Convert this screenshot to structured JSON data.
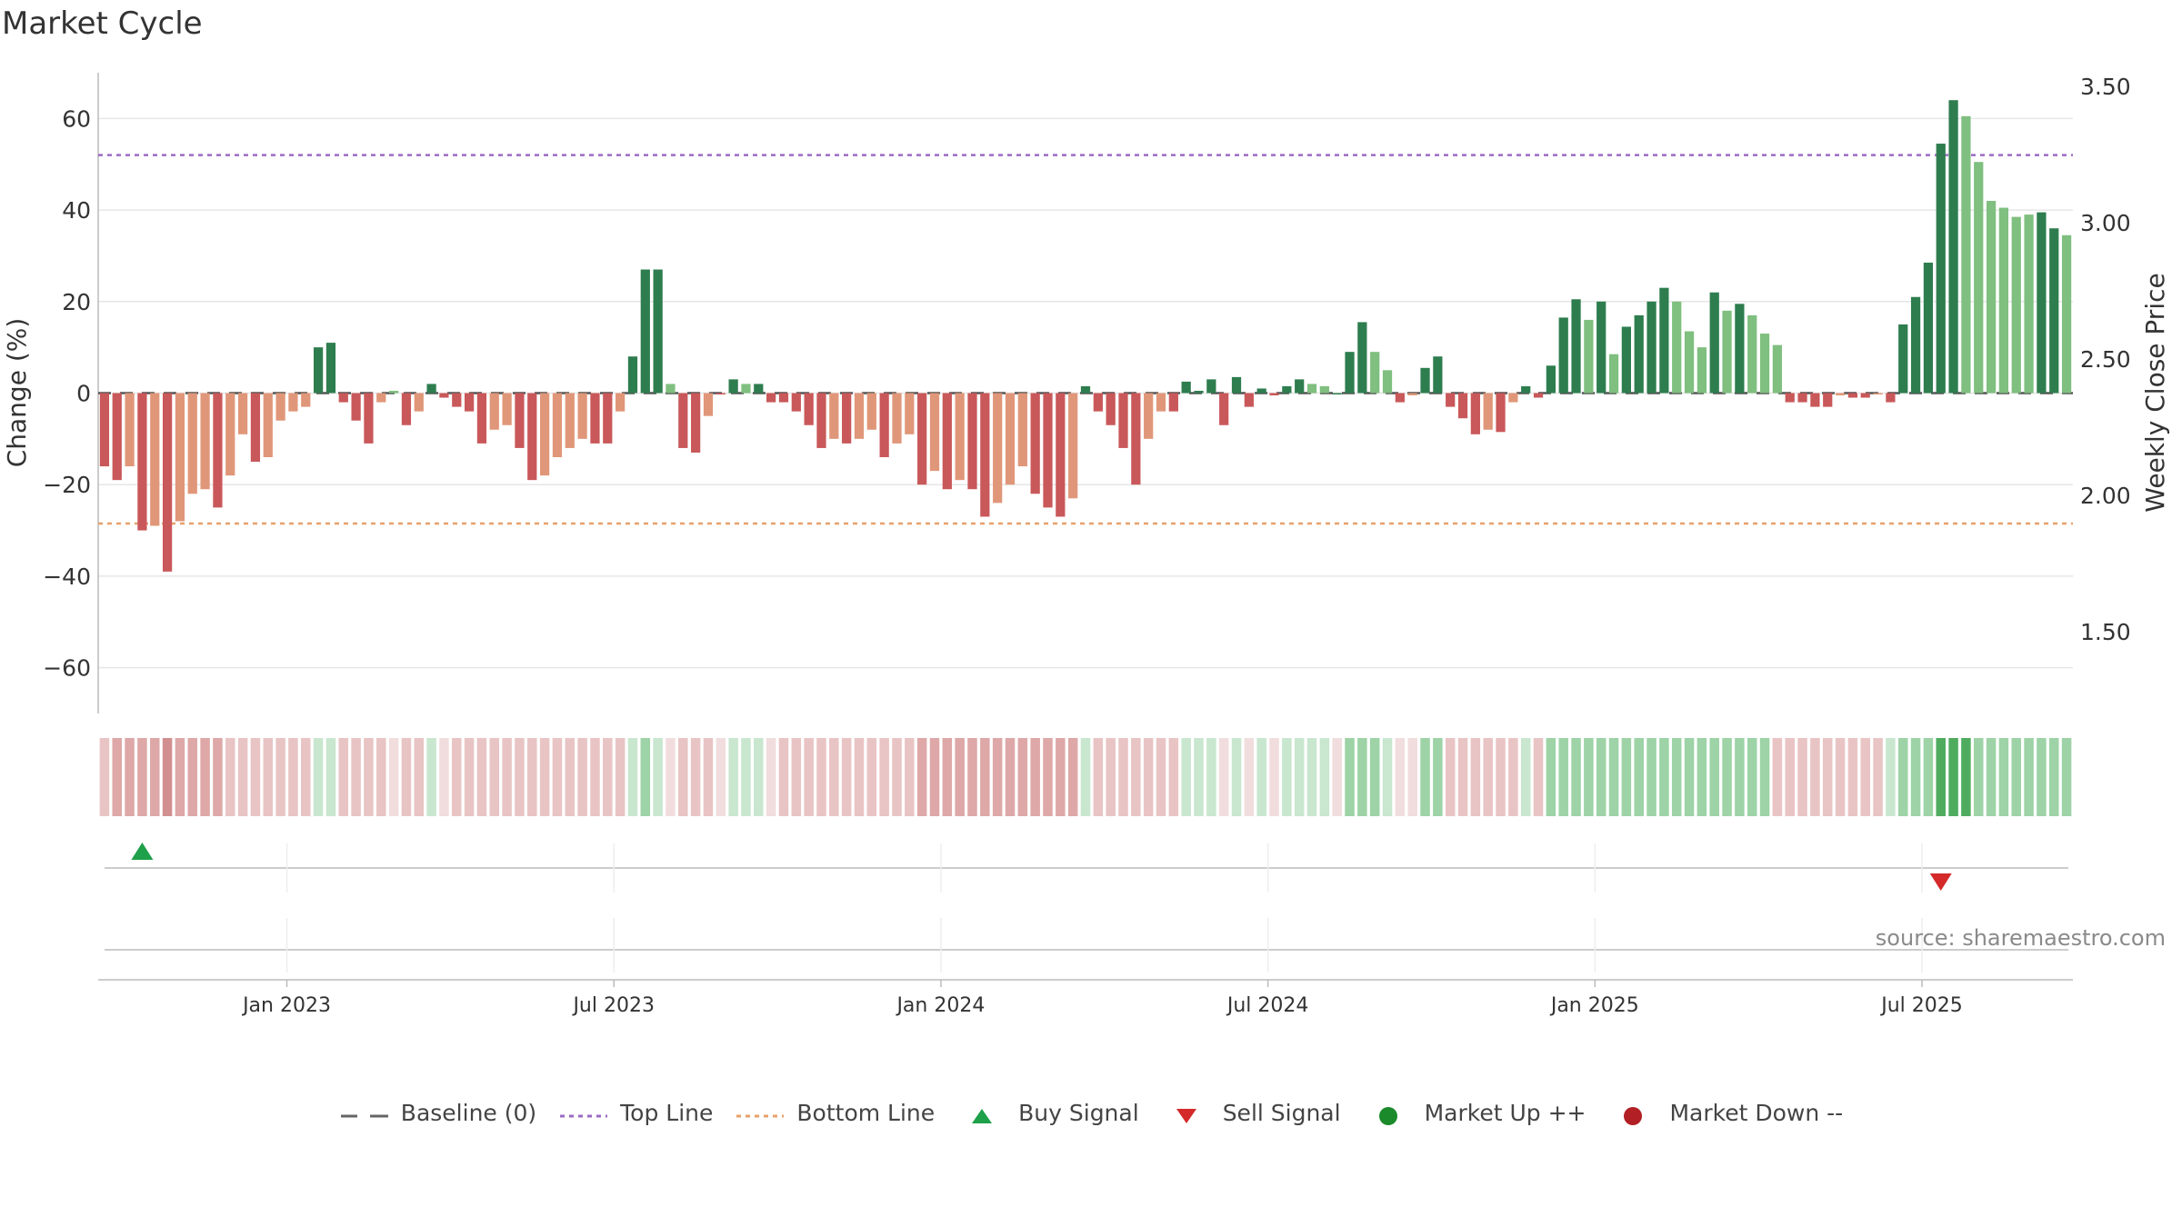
{
  "chart_data": {
    "title": "Market Cycle",
    "type": "bar",
    "ylabel_left": "Change (%)",
    "ylabel_right": "Weekly Close Price",
    "ylim_left": [
      -70,
      70
    ],
    "ylim_right": [
      1.2,
      3.55
    ],
    "yticks_left": [
      60,
      40,
      20,
      0,
      -20,
      -40,
      -60
    ],
    "yticks_left_labels": [
      "60",
      "40",
      "20",
      "0",
      "−20",
      "−40",
      "−60"
    ],
    "yticks_right": [
      3.5,
      3.0,
      2.5,
      2.0,
      1.5
    ],
    "yticks_right_labels": [
      "3.50",
      "3.00",
      "2.50",
      "2.00",
      "1.50"
    ],
    "xticks": [
      {
        "label": "Jan 2023",
        "index": 15
      },
      {
        "label": "Jul 2023",
        "index": 41
      },
      {
        "label": "Jan 2024",
        "index": 67
      },
      {
        "label": "Jul 2024",
        "index": 93
      },
      {
        "label": "Jan 2025",
        "index": 119
      },
      {
        "label": "Jul 2025",
        "index": 145
      }
    ],
    "top_line": 52,
    "bottom_line": -28.5,
    "grid": true,
    "values": [
      -16,
      -19,
      -16,
      -30,
      -29,
      -39,
      -28,
      -22,
      -21,
      -25,
      -18,
      -9,
      -15,
      -14,
      -6,
      -4,
      -3,
      10,
      11,
      -2,
      -6,
      -11,
      -2,
      0.5,
      -7,
      -4,
      2,
      -1,
      -3,
      -4,
      -11,
      -8,
      -7,
      -12,
      -19,
      -18,
      -14,
      -12,
      -10,
      -11,
      -11,
      -4,
      8,
      27,
      27,
      2,
      -12,
      -13,
      -5,
      0,
      3,
      2,
      2,
      -2,
      -2,
      -4,
      -7,
      -12,
      -10,
      -11,
      -10,
      -8,
      -14,
      -11,
      -9,
      -20,
      -17,
      -21,
      -19,
      -21,
      -27,
      -24,
      -20,
      -16,
      -22,
      -25,
      -27,
      -23,
      1.5,
      -4,
      -7,
      -12,
      -20,
      -10,
      -4,
      -4,
      2.5,
      0.5,
      3,
      -7,
      3.5,
      -3,
      1,
      -0.5,
      1.5,
      3,
      2,
      1.5,
      0,
      9,
      15.5,
      9,
      5,
      -2,
      -0.5,
      5.5,
      8,
      -3,
      -5.5,
      -9,
      -8,
      -8.5,
      -2,
      1.5,
      -1,
      6,
      16.5,
      20.5,
      16,
      20,
      8.5,
      14.5,
      17,
      20,
      23,
      20,
      13.5,
      10,
      22,
      18,
      19.5,
      17,
      13,
      10.5,
      -2,
      -2,
      -3,
      -3,
      -0.5,
      -1,
      -1,
      0,
      -2,
      15,
      21,
      28.5,
      54.5,
      64,
      60.5,
      50.5,
      42,
      40.5,
      38.5,
      39,
      39.5,
      36,
      34.5
    ],
    "bar_colors": [
      "r",
      "r",
      "s",
      "r",
      "s",
      "r",
      "s",
      "s",
      "s",
      "r",
      "s",
      "s",
      "r",
      "s",
      "s",
      "s",
      "s",
      "g",
      "g",
      "r",
      "r",
      "r",
      "s",
      "l",
      "r",
      "s",
      "g",
      "r",
      "r",
      "r",
      "r",
      "s",
      "s",
      "r",
      "r",
      "s",
      "s",
      "s",
      "s",
      "r",
      "r",
      "s",
      "g",
      "g",
      "g",
      "l",
      "r",
      "r",
      "s",
      "r",
      "g",
      "l",
      "g",
      "r",
      "r",
      "r",
      "r",
      "r",
      "s",
      "r",
      "s",
      "s",
      "r",
      "s",
      "s",
      "r",
      "s",
      "r",
      "s",
      "r",
      "r",
      "s",
      "s",
      "s",
      "r",
      "r",
      "r",
      "s",
      "g",
      "r",
      "r",
      "r",
      "r",
      "s",
      "s",
      "r",
      "g",
      "g",
      "g",
      "r",
      "g",
      "r",
      "g",
      "r",
      "g",
      "g",
      "l",
      "l",
      "g",
      "g",
      "g",
      "l",
      "l",
      "r",
      "s",
      "g",
      "g",
      "r",
      "r",
      "r",
      "s",
      "r",
      "s",
      "g",
      "r",
      "g",
      "g",
      "g",
      "l",
      "g",
      "l",
      "g",
      "g",
      "g",
      "g",
      "l",
      "l",
      "l",
      "g",
      "l",
      "g",
      "l",
      "l",
      "l",
      "r",
      "r",
      "r",
      "r",
      "s",
      "r",
      "r",
      "s",
      "r",
      "g",
      "g",
      "g",
      "g",
      "g",
      "l",
      "l",
      "l",
      "l",
      "l",
      "l",
      "g",
      "g",
      "l",
      "l"
    ],
    "heat_levels": [
      1,
      2,
      2,
      2,
      2,
      3,
      2,
      2,
      2,
      2,
      1,
      1,
      1,
      1,
      1,
      1,
      1,
      -1,
      -1,
      1,
      1,
      1,
      1,
      0,
      1,
      1,
      -1,
      0,
      1,
      1,
      1,
      1,
      1,
      1,
      1,
      1,
      1,
      1,
      1,
      1,
      1,
      1,
      -1,
      -2,
      -1,
      0,
      1,
      1,
      1,
      0,
      -1,
      -1,
      -1,
      0,
      1,
      1,
      1,
      1,
      1,
      1,
      1,
      1,
      1,
      1,
      1,
      2,
      2,
      2,
      2,
      2,
      2,
      2,
      2,
      2,
      2,
      2,
      2,
      2,
      -1,
      1,
      1,
      1,
      1,
      1,
      1,
      1,
      -1,
      -1,
      -1,
      0,
      -1,
      0,
      -1,
      0,
      -1,
      -1,
      -1,
      -1,
      0,
      -2,
      -2,
      -2,
      -1,
      0,
      0,
      -2,
      -2,
      1,
      1,
      1,
      1,
      1,
      1,
      -1,
      1,
      -2,
      -2,
      -2,
      -2,
      -2,
      -2,
      -2,
      -2,
      -2,
      -2,
      -2,
      -2,
      -2,
      -2,
      -2,
      -2,
      -2,
      -2,
      1,
      1,
      1,
      1,
      1,
      1,
      1,
      1,
      1,
      -1,
      -2,
      -2,
      -2,
      -3,
      -3,
      -3,
      -2,
      -2,
      -2,
      -2,
      -2,
      -2,
      -2,
      -2
    ],
    "buy_signals": [
      3
    ],
    "sell_signals": [
      146
    ],
    "legend": [
      {
        "label": "Baseline (0)",
        "symbol": "dash-gray"
      },
      {
        "label": "Top Line",
        "symbol": "dot-purple"
      },
      {
        "label": "Bottom Line",
        "symbol": "dot-orange"
      },
      {
        "label": "Buy Signal",
        "symbol": "triangle-up-green"
      },
      {
        "label": "Sell Signal",
        "symbol": "triangle-down-red"
      },
      {
        "label": "Market Up ++",
        "symbol": "circle-green"
      },
      {
        "label": "Market Down --",
        "symbol": "circle-red"
      }
    ],
    "legend_placement": "bottom"
  },
  "source_text": "source: sharemaestro.com",
  "colors": {
    "bar_red": "#c9585a",
    "bar_salmon": "#e09779",
    "bar_green": "#2e7d4f",
    "bar_lightgreen": "#7fbf7f",
    "top_line": "#9b6bc4",
    "bottom_line": "#e8a06a",
    "buy": "#1fa04a",
    "sell": "#d42a2a",
    "market_up": "#1b8a2a",
    "market_down": "#b21f24"
  }
}
